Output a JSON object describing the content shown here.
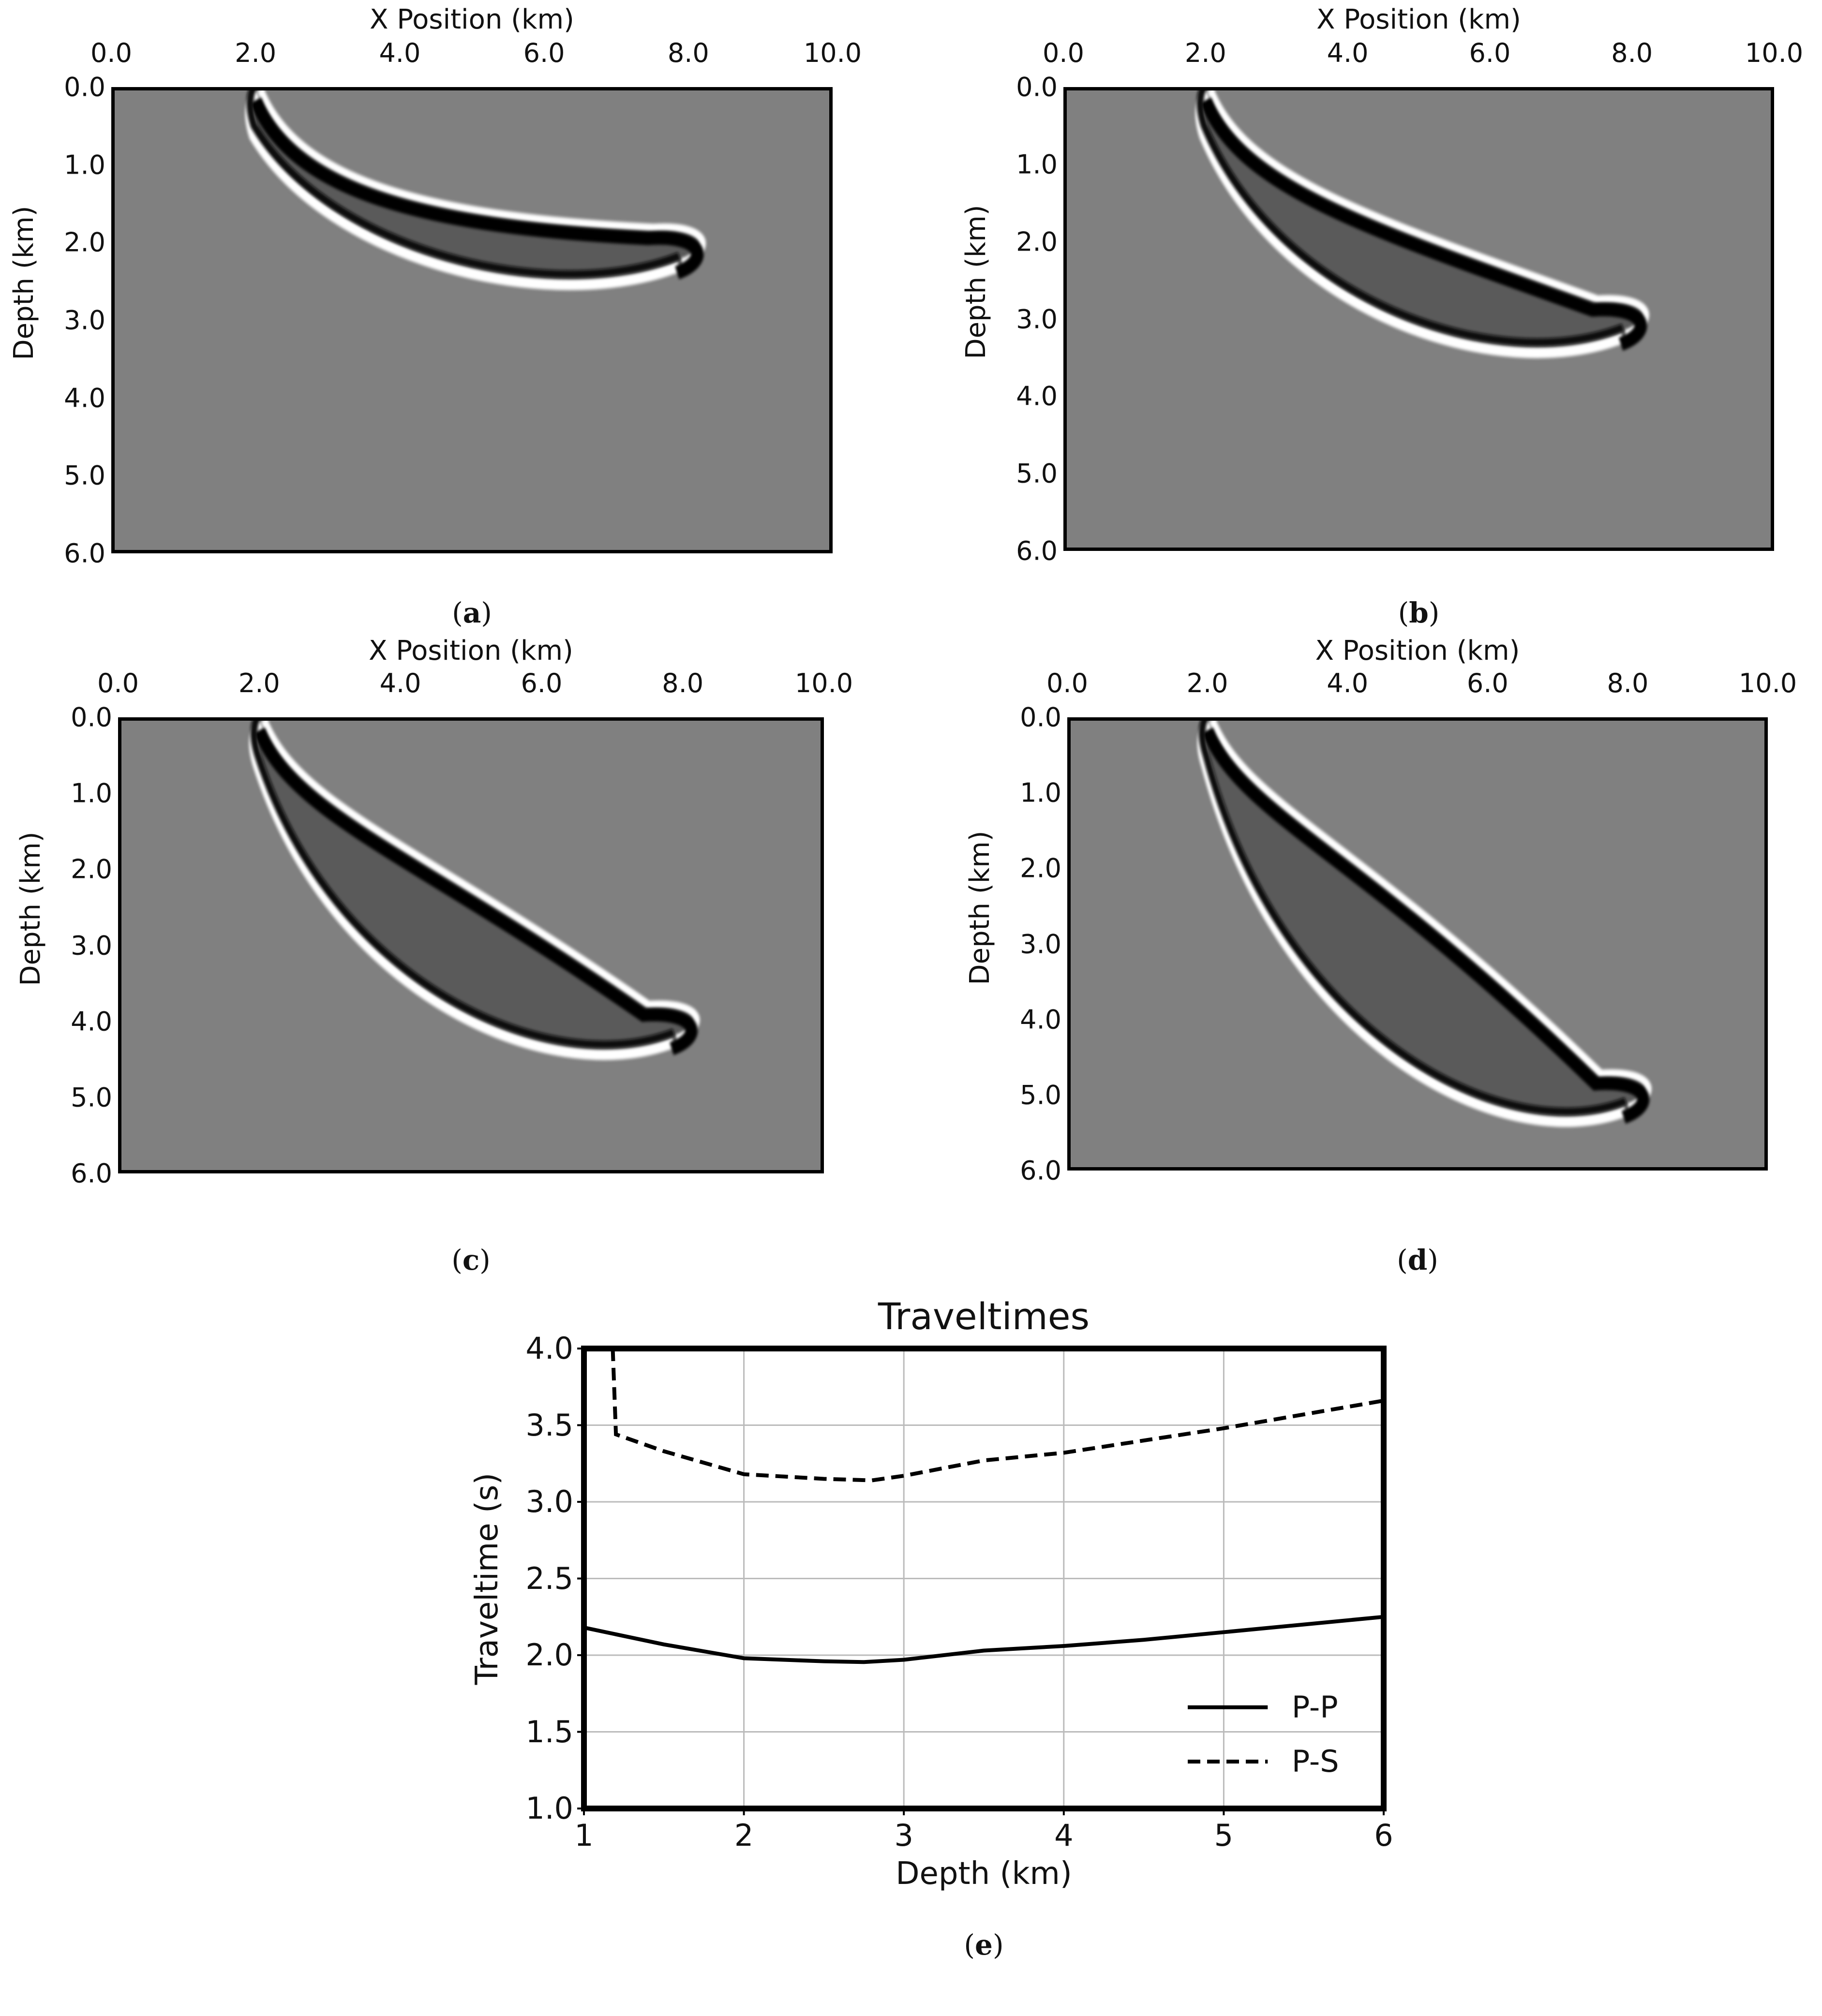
{
  "panels": [
    {
      "id": "a",
      "caption_letter": "a",
      "xlabel": "X Position (km)",
      "ylabel": "Depth (km)",
      "xticks": [
        "0.0",
        "2.0",
        "4.0",
        "6.0",
        "8.0",
        "10.0"
      ],
      "yticks": [
        "0.0",
        "1.0",
        "2.0",
        "3.0",
        "4.0",
        "5.0",
        "6.0"
      ],
      "xlim": [
        0,
        10
      ],
      "ylim": [
        0,
        6
      ]
    },
    {
      "id": "b",
      "caption_letter": "b",
      "xlabel": "X Position (km)",
      "ylabel": "Depth (km)",
      "xticks": [
        "0.0",
        "2.0",
        "4.0",
        "6.0",
        "8.0",
        "10.0"
      ],
      "yticks": [
        "0.0",
        "1.0",
        "2.0",
        "3.0",
        "4.0",
        "5.0",
        "6.0"
      ],
      "xlim": [
        0,
        10
      ],
      "ylim": [
        0,
        6
      ]
    },
    {
      "id": "c",
      "caption_letter": "c",
      "xlabel": "X Position (km)",
      "ylabel": "Depth (km)",
      "xticks": [
        "0.0",
        "2.0",
        "4.0",
        "6.0",
        "8.0",
        "10.0"
      ],
      "yticks": [
        "0.0",
        "1.0",
        "2.0",
        "3.0",
        "4.0",
        "5.0",
        "6.0"
      ],
      "xlim": [
        0,
        10
      ],
      "ylim": [
        0,
        6
      ]
    },
    {
      "id": "d",
      "caption_letter": "d",
      "xlabel": "X Position (km)",
      "ylabel": "Depth (km)",
      "xticks": [
        "0.0",
        "2.0",
        "4.0",
        "6.0",
        "8.0",
        "10.0"
      ],
      "yticks": [
        "0.0",
        "1.0",
        "2.0",
        "3.0",
        "4.0",
        "5.0",
        "6.0"
      ],
      "xlim": [
        0,
        10
      ],
      "ylim": [
        0,
        6
      ]
    }
  ],
  "chart_data": {
    "type": "line",
    "title": "Traveltimes",
    "xlabel": "Depth (km)",
    "ylabel": "Traveltime (s)",
    "xlim": [
      1,
      6
    ],
    "ylim": [
      1.0,
      4.0
    ],
    "xticks": [
      "1",
      "2",
      "3",
      "4",
      "5",
      "6"
    ],
    "yticks": [
      "1.0",
      "1.5",
      "2.0",
      "2.5",
      "3.0",
      "3.5",
      "4.0"
    ],
    "grid": true,
    "legend_position": "bottom-right",
    "caption_letter": "e",
    "series": [
      {
        "name": "P-P",
        "style": "solid",
        "x": [
          1,
          1.5,
          2,
          2.5,
          2.75,
          3,
          3.5,
          4,
          4.5,
          5,
          5.5,
          6
        ],
        "y": [
          2.18,
          2.07,
          1.98,
          1.96,
          1.955,
          1.97,
          2.03,
          2.06,
          2.1,
          2.15,
          2.2,
          2.25
        ]
      },
      {
        "name": "P-S",
        "style": "dashed",
        "x": [
          1.18,
          1.2,
          1.5,
          2,
          2.5,
          2.8,
          3,
          3.5,
          4,
          4.5,
          5,
          5.5,
          6
        ],
        "y": [
          4.0,
          3.44,
          3.33,
          3.18,
          3.15,
          3.14,
          3.17,
          3.27,
          3.32,
          3.4,
          3.48,
          3.57,
          3.66
        ]
      }
    ]
  }
}
